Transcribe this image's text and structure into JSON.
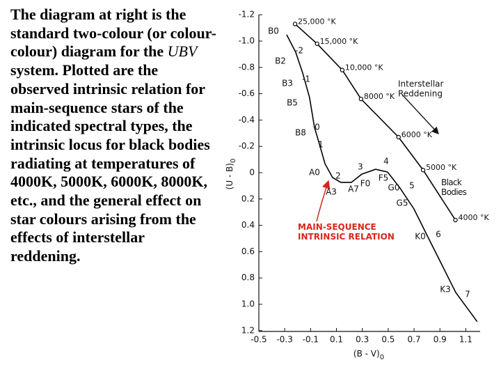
{
  "text": {
    "before": "The diagram at right is the standard two-colour (or colour-colour) diagram for the ",
    "italic": "UBV",
    "after": " system. Plotted are the observed intrinsic relation for main-sequence stars of the indicated spectral types, the intrinsic locus for black bodies radiating at temperatures of 4000K, 5000K, 6000K, 8000K, etc., and the general effect on star colours arising from the effects of interstellar reddening."
  },
  "chart_data": {
    "type": "line",
    "x_label": "(B - V)",
    "x_label_sub": "0",
    "y_label": "(U - B)",
    "y_label_sub": "0",
    "xlim": [
      -0.5,
      1.2
    ],
    "xticks": [
      -0.5,
      -0.3,
      -0.1,
      0.1,
      0.3,
      0.5,
      0.7,
      0.9,
      1.1
    ],
    "ylim": [
      -1.2,
      1.2
    ],
    "y_inverted": true,
    "yticks": [
      -1.2,
      {
        "value": -1,
        "label": "-1.0"
      },
      -0.8,
      -0.6,
      -0.4,
      -0.2,
      0,
      0.2,
      0.4,
      0.6,
      0.8,
      {
        "value": 1,
        "label": "1.0"
      },
      1.2
    ],
    "series": [
      {
        "name": "Black Bodies",
        "color": "#000000",
        "markers": true,
        "x": [
          -0.22,
          -0.05,
          0.145,
          0.29,
          0.58,
          0.77,
          1.02
        ],
        "values": [
          -1.13,
          -0.98,
          -0.78,
          -0.56,
          -0.27,
          -0.02,
          0.36
        ],
        "value_labels": [
          "25,000 °K",
          "15,000 °K",
          "10,000 °K",
          "8000 °K",
          "6000 °K",
          "5000 °K",
          "4000 °K"
        ]
      },
      {
        "name": "MAIN-SEQUENCE INTRINSIC RELATION",
        "color": "#000000",
        "label_color": "#d8261c",
        "markers": false,
        "x": [
          -0.285,
          -0.215,
          -0.161,
          -0.108,
          -0.07,
          -0.027,
          0.011,
          0.07,
          0.134,
          0.215,
          0.296,
          0.403,
          0.495,
          0.591,
          0.699,
          0.806,
          0.914,
          1.022,
          1.188
        ],
        "values": [
          -1.048,
          -0.915,
          -0.757,
          -0.571,
          -0.344,
          -0.201,
          -0.069,
          0.037,
          0.074,
          0.074,
          0.011,
          -0.026,
          -0.005,
          0.116,
          0.275,
          0.487,
          0.698,
          0.91,
          1.132
        ]
      }
    ],
    "annotations": [
      "Interstellar",
      "Reddening"
    ],
    "spectral_labels": [
      "B0",
      "-2",
      "B2",
      "B3",
      "-1",
      "B5",
      "B8",
      "0",
      "1",
      "A0",
      "2",
      "A3",
      "A7",
      "3",
      "F0",
      "4",
      "F5",
      "G0",
      "5",
      "G5",
      "K0",
      "6",
      "K3",
      "7"
    ]
  }
}
